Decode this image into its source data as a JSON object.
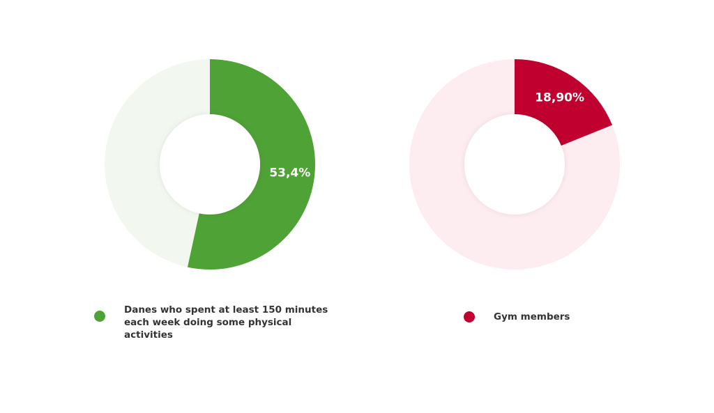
{
  "chart_data": [
    {
      "type": "donut",
      "categories": [
        "Danes who spent at least 150 minutes each week doing some physical activities"
      ],
      "values": [
        53.4
      ],
      "value_labels": [
        "53,4%"
      ],
      "color": "#4fa236",
      "track_color": "#f2f8ef"
    },
    {
      "type": "donut",
      "categories": [
        "Gym members"
      ],
      "values": [
        18.9
      ],
      "value_labels": [
        "18,90%"
      ],
      "color": "#c0002f",
      "track_color": "#fdecf0"
    }
  ]
}
